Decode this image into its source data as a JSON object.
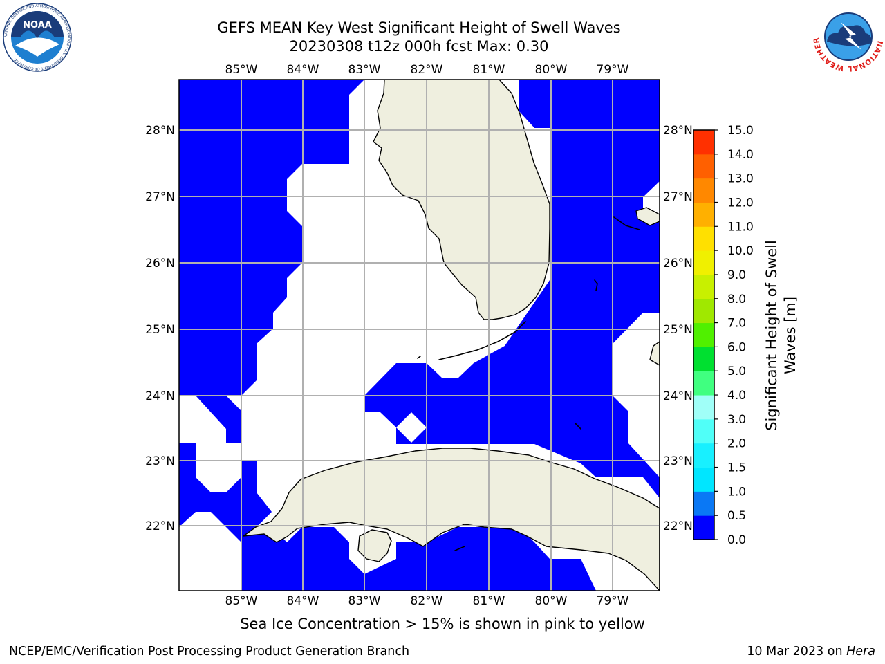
{
  "header": {
    "title_line1": "GEFS MEAN Key West Significant Height of Swell Waves",
    "title_line2": "20230308 t12z 000h fcst   Max: 0.30"
  },
  "map": {
    "lon_labels": [
      "85°W",
      "84°W",
      "83°W",
      "82°W",
      "81°W",
      "80°W",
      "79°W"
    ],
    "lat_labels": [
      "28°N",
      "27°N",
      "26°N",
      "25°N",
      "24°N",
      "23°N",
      "22°N"
    ],
    "colors": {
      "sea_fill": "#0000ff",
      "land_fill": "#efefdf",
      "grid": "#b0b0b0"
    }
  },
  "colorbar": {
    "label_line1": "Significant Height of Swell",
    "label_line2": "Waves [m]",
    "ticks": [
      "0.0",
      "0.5",
      "1.0",
      "1.5",
      "2.0",
      "3.0",
      "4.0",
      "5.0",
      "6.0",
      "7.0",
      "8.0",
      "9.0",
      "10.0",
      "11.0",
      "12.0",
      "13.0",
      "14.0",
      "15.0"
    ],
    "colors": [
      "#0000ff",
      "#0a78f5",
      "#00e6ff",
      "#18f0ff",
      "#50fff8",
      "#a0fff8",
      "#40ff80",
      "#00e030",
      "#50f000",
      "#a0e800",
      "#c8f000",
      "#f0f000",
      "#ffe000",
      "#ffb000",
      "#ff8800",
      "#ff6000",
      "#ff3000",
      "#ff0000"
    ]
  },
  "footer": {
    "note": "Sea Ice Concentration > 15% is shown in pink to yellow",
    "credit_left": "NCEP/EMC/Verification Post Processing Product Generation Branch",
    "credit_right_date": "10 Mar 2023 on ",
    "credit_right_host": "Hera"
  },
  "logos": {
    "noaa": "NOAA",
    "noaa_ring": "NATIONAL OCEANIC AND ATMOSPHERIC ADMINISTRATION · U.S. DEPARTMENT OF COMMERCE",
    "nws_ring": "NATIONAL WEATHER SERVICE"
  }
}
